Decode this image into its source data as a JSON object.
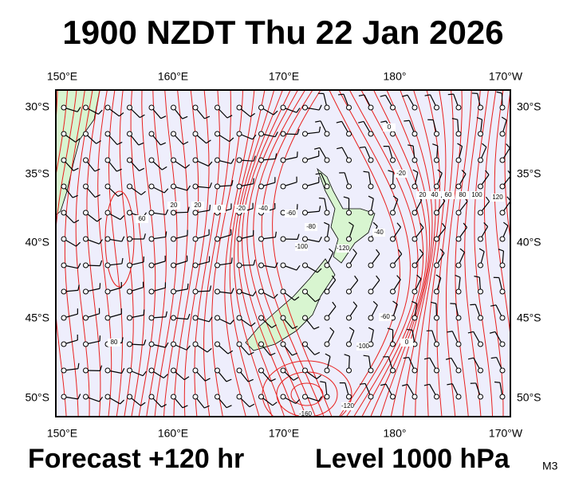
{
  "header": {
    "title": "1900 NZDT Thu 22 Jan 2026"
  },
  "map": {
    "top_lon_labels": [
      "150°E",
      "160°E",
      "170°E",
      "180°",
      "170°W"
    ],
    "bottom_lon_labels": [
      "150°E",
      "160°E",
      "170°E",
      "180°",
      "170°W"
    ],
    "left_lat_labels": [
      "30°S",
      "35°S",
      "40°S",
      "45°S",
      "50°S"
    ],
    "right_lat_labels": [
      "30°S",
      "35°S",
      "40°S",
      "45°S",
      "50°S"
    ],
    "contour_labels": [
      "60",
      "20",
      "20",
      "0",
      "-20",
      "-40",
      "-60",
      "-80",
      "-100",
      "-120",
      "-40",
      "-20",
      "0",
      "20",
      "40",
      "60",
      "80",
      "100",
      "120",
      "-60",
      "-100",
      "0",
      "-120",
      "-160",
      "80"
    ]
  },
  "footer": {
    "forecast": "Forecast +120 hr",
    "level": "Level 1000 hPa",
    "model": "M3"
  }
}
